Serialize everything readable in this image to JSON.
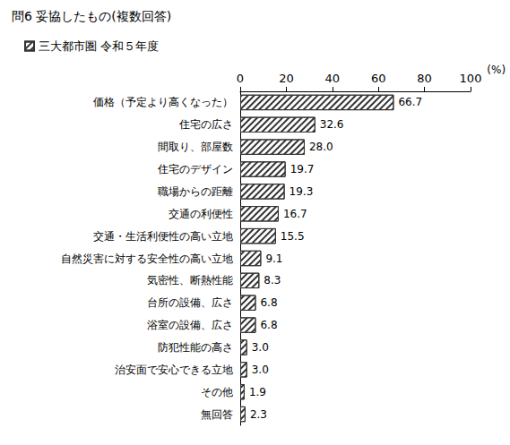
{
  "chart_data": {
    "type": "bar",
    "orientation": "horizontal",
    "title": "問6 妥協したもの(複数回答)",
    "xlabel": "(%)",
    "categories": [
      "価格（予定より高くなった）",
      "住宅の広さ",
      "間取り、部屋数",
      "住宅のデザイン",
      "職場からの距離",
      "交通の利便性",
      "交通・生活利便性の高い立地",
      "自然災害に対する安全性の高い立地",
      "気密性、断熱性能",
      "台所の設備、広さ",
      "浴室の設備、広さ",
      "防犯性能の高さ",
      "治安面で安心できる立地",
      "その他",
      "無回答"
    ],
    "series": [
      {
        "name": "三大都市圏 令和５年度",
        "color": "#333333",
        "values": [
          66.7,
          32.6,
          28.0,
          19.7,
          19.3,
          16.7,
          15.5,
          9.1,
          8.3,
          6.8,
          6.8,
          3.0,
          3.0,
          1.9,
          2.3
        ],
        "value_labels": [
          "66.7",
          "32.6",
          "28.0",
          "19.7",
          "19.3",
          "16.7",
          "15.5",
          "9.1",
          "8.3",
          "6.8",
          "6.8",
          "3.0",
          "3.0",
          "1.9",
          "2.3"
        ]
      }
    ],
    "xlim": [
      0,
      100
    ],
    "xticks": [
      0,
      20,
      40,
      60,
      80,
      100
    ],
    "grid": false,
    "legend": "top-left",
    "data_labels": true
  }
}
